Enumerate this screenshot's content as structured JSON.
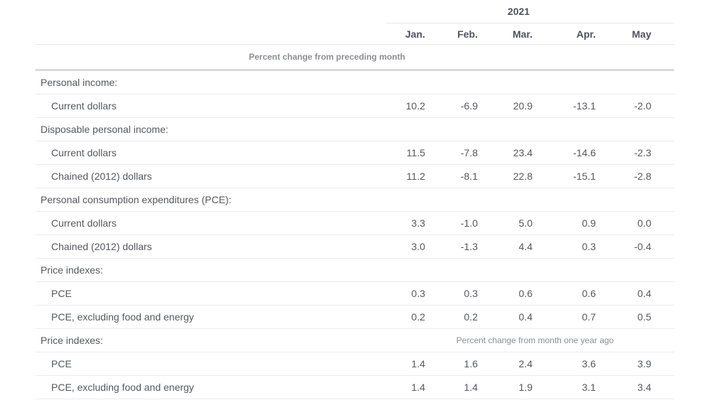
{
  "chart_data": {
    "type": "table",
    "year_header": "2021",
    "columns": [
      "Jan.",
      "Feb.",
      "Mar.",
      "Apr.",
      "May"
    ],
    "top_note": "Percent change from preceding month",
    "rows": [
      {
        "type": "section",
        "label": "Personal income:"
      },
      {
        "type": "data",
        "label": "Current dollars",
        "values": [
          "10.2",
          "-6.9",
          "20.9",
          "-13.1",
          "-2.0"
        ]
      },
      {
        "type": "section",
        "label": "Disposable personal income:"
      },
      {
        "type": "data",
        "label": "Current dollars",
        "values": [
          "11.5",
          "-7.8",
          "23.4",
          "-14.6",
          "-2.3"
        ]
      },
      {
        "type": "data",
        "label": "Chained (2012) dollars",
        "values": [
          "11.2",
          "-8.1",
          "22.8",
          "-15.1",
          "-2.8"
        ]
      },
      {
        "type": "section",
        "label": "Personal consumption expenditures (PCE):"
      },
      {
        "type": "data",
        "label": "Current dollars",
        "values": [
          "3.3",
          "-1.0",
          "5.0",
          "0.9",
          "0.0"
        ]
      },
      {
        "type": "data",
        "label": "Chained (2012) dollars",
        "values": [
          "3.0",
          "-1.3",
          "4.4",
          "0.3",
          "-0.4"
        ]
      },
      {
        "type": "section",
        "label": "Price indexes:"
      },
      {
        "type": "data",
        "label": "PCE",
        "values": [
          "0.3",
          "0.3",
          "0.6",
          "0.6",
          "0.4"
        ]
      },
      {
        "type": "data",
        "label": "PCE, excluding food and energy",
        "values": [
          "0.2",
          "0.2",
          "0.4",
          "0.7",
          "0.5"
        ]
      },
      {
        "type": "section-note",
        "label": "Price indexes:",
        "note": "Percent change from month one year ago"
      },
      {
        "type": "data",
        "label": "PCE",
        "values": [
          "1.4",
          "1.6",
          "2.4",
          "3.6",
          "3.9"
        ]
      },
      {
        "type": "data",
        "label": "PCE, excluding food and energy",
        "values": [
          "1.4",
          "1.4",
          "1.9",
          "3.1",
          "3.4"
        ]
      }
    ],
    "colors": {
      "text": "#56585c",
      "header_text": "#4d525c",
      "note_text": "#8b8e91",
      "row_line": "#ececec",
      "strong_line": "#d9d9d9"
    }
  }
}
